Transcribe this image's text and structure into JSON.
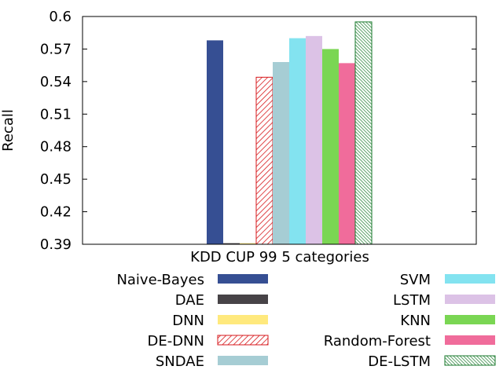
{
  "chart_data": {
    "type": "bar",
    "categories": [
      "KDD CUP 99 5 categories"
    ],
    "xlabel": "KDD CUP 99 5 categories",
    "ylabel": "Recall",
    "ylim": [
      0.39,
      0.6
    ],
    "yticks": [
      "0.39",
      "0.42",
      "0.45",
      "0.48",
      "0.51",
      "0.54",
      "0.57",
      "0.6"
    ],
    "grid": false,
    "legend_position": "bottom",
    "series": [
      {
        "name": "Naive-Bayes",
        "values": [
          0.578
        ],
        "color": "#364f93",
        "pattern": "solid"
      },
      {
        "name": "DAE",
        "values": [
          0.391
        ],
        "color": "#474347",
        "pattern": "solid"
      },
      {
        "name": "DNN",
        "values": [
          0.391
        ],
        "color": "#ffe97d",
        "pattern": "solid"
      },
      {
        "name": "DE-DNN",
        "values": [
          0.544
        ],
        "color": "#d7191c",
        "pattern": "hatch"
      },
      {
        "name": "SNDAE",
        "values": [
          0.558
        ],
        "color": "#a6cdd4",
        "pattern": "solid"
      },
      {
        "name": "SVM",
        "values": [
          0.58
        ],
        "color": "#83e3f0",
        "pattern": "solid"
      },
      {
        "name": "LSTM",
        "values": [
          0.582
        ],
        "color": "#dcc2e6",
        "pattern": "solid"
      },
      {
        "name": "KNN",
        "values": [
          0.57
        ],
        "color": "#7ad653",
        "pattern": "solid"
      },
      {
        "name": "Random-Forest",
        "values": [
          0.557
        ],
        "color": "#f06c9b",
        "pattern": "solid"
      },
      {
        "name": "DE-LSTM",
        "values": [
          0.595
        ],
        "color": "#1a7a2c",
        "pattern": "hatch"
      }
    ]
  }
}
